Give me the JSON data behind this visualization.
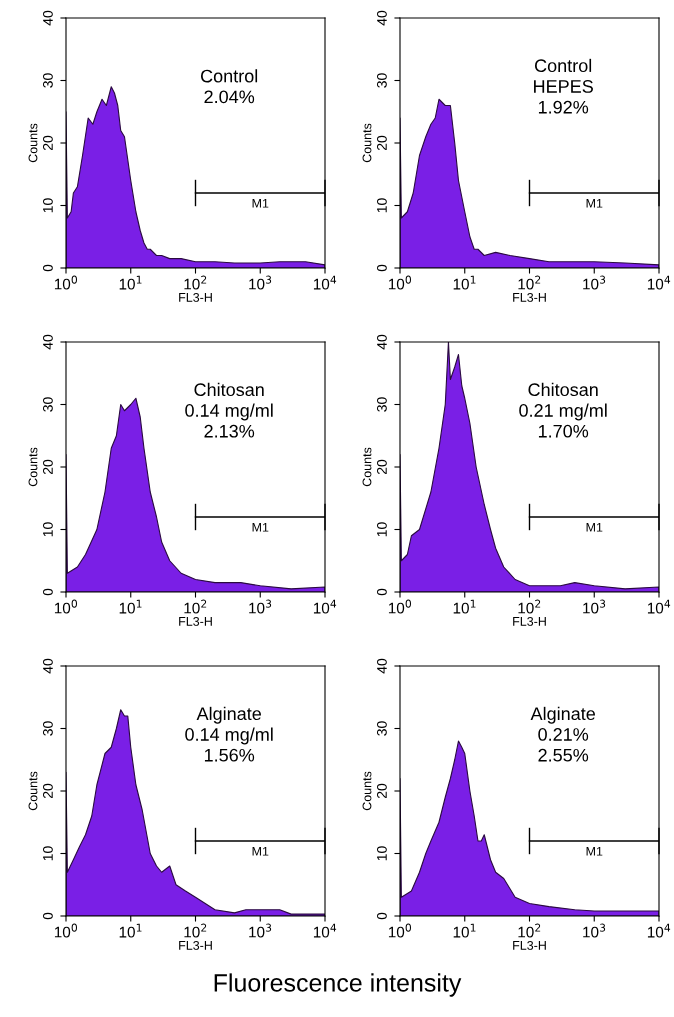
{
  "chart_data": [
    {
      "type": "area",
      "xlabel": "FL3-H",
      "ylabel": "Counts",
      "log": "x",
      "xlim": [
        1,
        10000
      ],
      "ylim": [
        0,
        40
      ],
      "xticks": [
        {
          "value": 1,
          "label": "10$^{0}$"
        },
        {
          "value": 10,
          "label": "10$^{1}$"
        },
        {
          "value": 100,
          "label": "10$^{2}$"
        },
        {
          "value": 1000,
          "label": "10$^{3}$"
        },
        {
          "value": 10000,
          "label": "10$^{4}$"
        }
      ],
      "yticks": [
        0,
        10,
        20,
        30,
        40
      ],
      "annotations": [
        "Control\n2.04%"
      ],
      "series": [
        {
          "color": "#7a1fe6",
          "x": [
            1,
            1.05,
            1.2,
            1.3,
            1.5,
            1.8,
            2.2,
            2.6,
            3,
            3.6,
            4.2,
            5,
            5.6,
            6.3,
            7,
            8,
            10,
            12,
            14,
            16,
            18,
            20,
            25,
            30,
            40,
            60,
            100,
            200,
            400,
            1000,
            2000,
            5000,
            10000
          ],
          "values": [
            25,
            8,
            9,
            12,
            13,
            18,
            24,
            23,
            25,
            27,
            26,
            29,
            28,
            26,
            22,
            21,
            14,
            9,
            6,
            4,
            3,
            3,
            2,
            2,
            1.5,
            1.5,
            1,
            1,
            0.8,
            0.8,
            1,
            1,
            0.5
          ]
        },
        {
          "type": "line",
          "name": "M1",
          "color": "#000000",
          "x": [
            100,
            10000
          ],
          "values": [
            12,
            12
          ]
        }
      ]
    },
    {
      "type": "area",
      "xlabel": "FL3-H",
      "ylabel": "Counts",
      "log": "x",
      "xlim": [
        1,
        10000
      ],
      "ylim": [
        0,
        40
      ],
      "xticks": [
        {
          "value": 1,
          "label": "10$^{0}$"
        },
        {
          "value": 10,
          "label": "10$^{1}$"
        },
        {
          "value": 100,
          "label": "10$^{2}$"
        },
        {
          "value": 1000,
          "label": "10$^{3}$"
        },
        {
          "value": 10000,
          "label": "10$^{4}$"
        }
      ],
      "yticks": [
        0,
        10,
        20,
        30,
        40
      ],
      "annotations": [
        "Control\nHEPES\n1.92%"
      ],
      "series": [
        {
          "color": "#7a1fe6",
          "x": [
            1,
            1.05,
            1.3,
            1.6,
            2,
            2.5,
            3,
            3.5,
            4,
            5,
            6,
            7,
            8,
            10,
            12,
            14,
            16,
            20,
            30,
            50,
            100,
            200,
            500,
            1000,
            3000,
            10000
          ],
          "values": [
            24,
            8,
            9,
            12,
            18,
            21,
            23,
            24,
            27,
            26,
            26,
            20,
            14,
            9,
            5,
            3,
            3,
            2,
            2.5,
            2,
            1.5,
            1,
            1,
            1,
            0.8,
            0.5
          ]
        },
        {
          "type": "line",
          "name": "M1",
          "color": "#000000",
          "x": [
            100,
            10000
          ],
          "values": [
            12,
            12
          ]
        }
      ]
    },
    {
      "type": "area",
      "xlabel": "FL3-H",
      "ylabel": "Counts",
      "log": "x",
      "xlim": [
        1,
        10000
      ],
      "ylim": [
        0,
        40
      ],
      "xticks": [
        {
          "value": 1,
          "label": "10$^{0}$"
        },
        {
          "value": 10,
          "label": "10$^{1}$"
        },
        {
          "value": 100,
          "label": "10$^{2}$"
        },
        {
          "value": 1000,
          "label": "10$^{3}$"
        },
        {
          "value": 10000,
          "label": "10$^{4}$"
        }
      ],
      "yticks": [
        0,
        10,
        20,
        30,
        40
      ],
      "annotations": [
        "Chitosan\n0.14 mg/ml\n2.13%"
      ],
      "series": [
        {
          "color": "#7a1fe6",
          "x": [
            1,
            1.05,
            1.5,
            2,
            3,
            4,
            5,
            6,
            7,
            8,
            10,
            12,
            14,
            16,
            20,
            25,
            30,
            40,
            60,
            100,
            200,
            500,
            1000,
            3000,
            10000
          ],
          "values": [
            22,
            3,
            4,
            6,
            10,
            16,
            23,
            25,
            30,
            29,
            30,
            31,
            28,
            23,
            16,
            12,
            8,
            5,
            3,
            2,
            1.5,
            1.5,
            1,
            0.5,
            0.8
          ]
        },
        {
          "type": "line",
          "name": "M1",
          "color": "#000000",
          "x": [
            100,
            10000
          ],
          "values": [
            12,
            12
          ]
        }
      ]
    },
    {
      "type": "area",
      "xlabel": "FL3-H",
      "ylabel": "Counts",
      "log": "x",
      "xlim": [
        1,
        10000
      ],
      "ylim": [
        0,
        40
      ],
      "xticks": [
        {
          "value": 1,
          "label": "10$^{0}$"
        },
        {
          "value": 10,
          "label": "10$^{1}$"
        },
        {
          "value": 100,
          "label": "10$^{2}$"
        },
        {
          "value": 1000,
          "label": "10$^{3}$"
        },
        {
          "value": 10000,
          "label": "10$^{4}$"
        }
      ],
      "yticks": [
        0,
        10,
        20,
        30,
        40
      ],
      "annotations": [
        "Chitosan\n0.21 mg/ml\n1.70%"
      ],
      "series": [
        {
          "color": "#7a1fe6",
          "x": [
            1,
            1.05,
            1.3,
            1.5,
            2,
            3,
            4,
            5,
            5.6,
            6,
            7,
            8,
            9,
            10,
            12,
            15,
            20,
            25,
            30,
            40,
            60,
            100,
            300,
            500,
            1000,
            3000,
            10000
          ],
          "values": [
            22,
            5,
            6,
            9,
            10,
            16,
            23,
            30,
            40,
            34,
            36,
            38,
            33,
            31,
            27,
            20,
            14,
            10,
            7,
            4,
            2,
            1,
            1,
            1.5,
            1,
            0.5,
            0.8
          ]
        },
        {
          "type": "line",
          "name": "M1",
          "color": "#000000",
          "x": [
            100,
            10000
          ],
          "values": [
            12,
            12
          ]
        }
      ]
    },
    {
      "type": "area",
      "xlabel": "FL3-H",
      "ylabel": "Counts",
      "log": "x",
      "xlim": [
        1,
        10000
      ],
      "ylim": [
        0,
        40
      ],
      "xticks": [
        {
          "value": 1,
          "label": "10$^{0}$"
        },
        {
          "value": 10,
          "label": "10$^{1}$"
        },
        {
          "value": 100,
          "label": "10$^{2}$"
        },
        {
          "value": 1000,
          "label": "10$^{3}$"
        },
        {
          "value": 10000,
          "label": "10$^{4}$"
        }
      ],
      "yticks": [
        0,
        10,
        20,
        30,
        40
      ],
      "annotations": [
        "Alginate\n0.14 mg/ml\n1.56%"
      ],
      "series": [
        {
          "color": "#7a1fe6",
          "x": [
            1,
            1.05,
            1.3,
            1.6,
            2,
            2.5,
            3,
            4,
            5,
            6,
            7,
            8,
            9,
            10,
            12,
            15,
            20,
            25,
            30,
            40,
            50,
            70,
            100,
            200,
            400,
            600,
            1000,
            2000,
            3000,
            10000
          ],
          "values": [
            23,
            7,
            9,
            11,
            13,
            16,
            21,
            26,
            27,
            30,
            33,
            32,
            32,
            27,
            21,
            17,
            10,
            8,
            7,
            8,
            5,
            4,
            3,
            1,
            0.5,
            1,
            1,
            1,
            0.3,
            0.3
          ]
        },
        {
          "type": "line",
          "name": "M1",
          "color": "#000000",
          "x": [
            100,
            10000
          ],
          "values": [
            12,
            12
          ]
        }
      ]
    },
    {
      "type": "area",
      "xlabel": "FL3-H",
      "ylabel": "Counts",
      "log": "x",
      "xlim": [
        1,
        10000
      ],
      "ylim": [
        0,
        40
      ],
      "xticks": [
        {
          "value": 1,
          "label": "10$^{0}$"
        },
        {
          "value": 10,
          "label": "10$^{1}$"
        },
        {
          "value": 100,
          "label": "10$^{2}$"
        },
        {
          "value": 1000,
          "label": "10$^{3}$"
        },
        {
          "value": 10000,
          "label": "10$^{4}$"
        }
      ],
      "yticks": [
        0,
        10,
        20,
        30,
        40
      ],
      "annotations": [
        "Alginate\n0.21%\n2.55%",
        "Fluorescence intensity"
      ],
      "series": [
        {
          "color": "#7a1fe6",
          "x": [
            1,
            1.05,
            1.5,
            2,
            2.5,
            3,
            4,
            5,
            6,
            7,
            8,
            9,
            10,
            12,
            14,
            16,
            18,
            20,
            25,
            30,
            40,
            60,
            100,
            200,
            500,
            1000,
            3000,
            10000
          ],
          "values": [
            22,
            3,
            4,
            7,
            10,
            12,
            15,
            19,
            22,
            25,
            28,
            27,
            26,
            20,
            16,
            12,
            12,
            13,
            9,
            7,
            6,
            3,
            2,
            1.5,
            1,
            0.8,
            0.8,
            0.8
          ]
        },
        {
          "type": "line",
          "name": "M1",
          "color": "#000000",
          "x": [
            100,
            10000
          ],
          "values": [
            12,
            12
          ]
        }
      ]
    }
  ]
}
